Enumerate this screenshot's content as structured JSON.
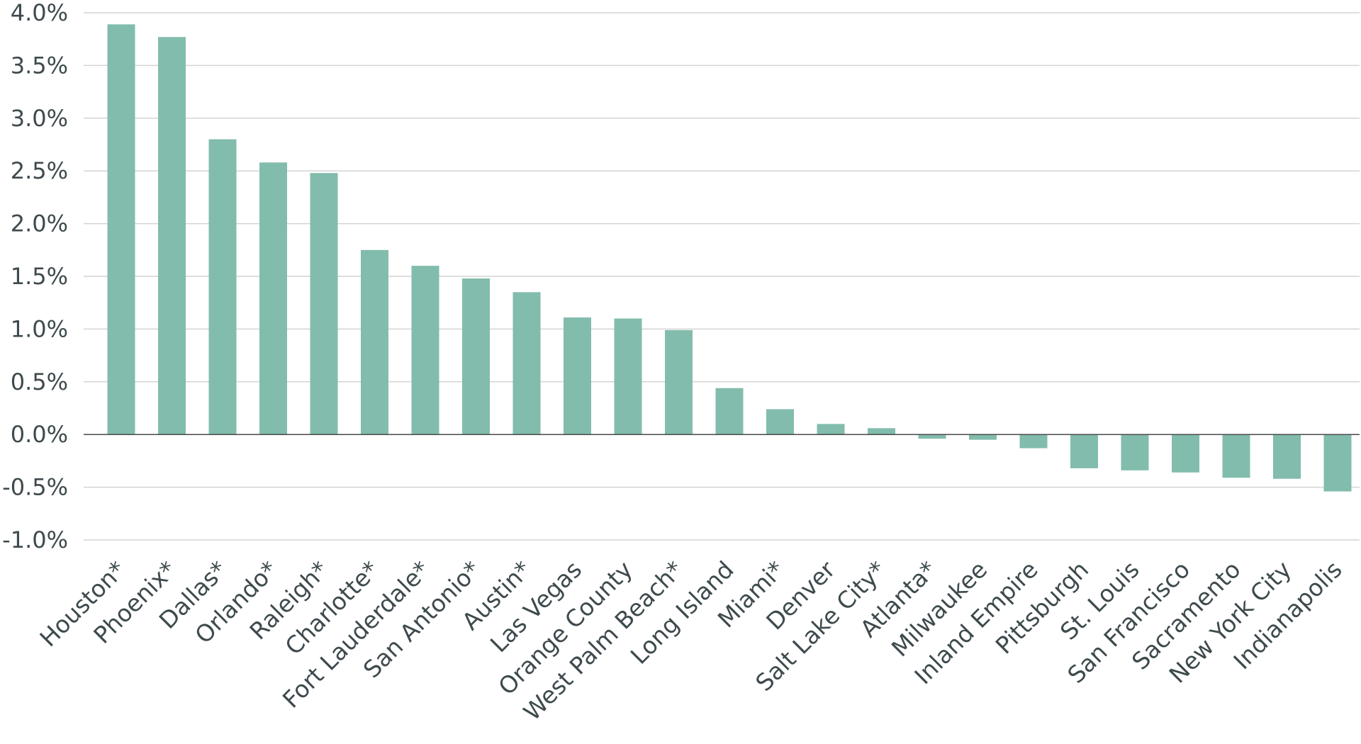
{
  "chart_data": {
    "type": "bar",
    "title": "",
    "xlabel": "",
    "ylabel": "",
    "ylim": [
      -1.0,
      4.0
    ],
    "y_ticks": [
      4.0,
      3.5,
      3.0,
      2.5,
      2.0,
      1.5,
      1.0,
      0.5,
      0.0,
      -0.5,
      -1.0
    ],
    "y_tick_labels": [
      "4.0%",
      "3.5%",
      "3.0%",
      "2.5%",
      "2.0%",
      "1.5%",
      "1.0%",
      "0.5%",
      "0.0%",
      "-0.5%",
      "-1.0%"
    ],
    "grid": true,
    "legend": "none",
    "bar_color": "#82bcad",
    "categories": [
      "Houston*",
      "Phoenix*",
      "Dallas*",
      "Orlando*",
      "Raleigh*",
      "Charlotte*",
      "Fort Lauderdale*",
      "San Antonio*",
      "Austin*",
      "Las Vegas",
      "Orange County",
      "West Palm Beach*",
      "Long Island",
      "Miami*",
      "Denver",
      "Salt Lake City*",
      "Atlanta*",
      "Milwaukee",
      "Inland Empire",
      "Pittsburgh",
      "St. Louis",
      "San Francisco",
      "Sacramento",
      "New York City",
      "Indianapolis"
    ],
    "values": [
      3.89,
      3.77,
      2.8,
      2.58,
      2.48,
      1.75,
      1.6,
      1.48,
      1.35,
      1.11,
      1.1,
      0.99,
      0.44,
      0.24,
      0.1,
      0.06,
      -0.04,
      -0.05,
      -0.13,
      -0.32,
      -0.34,
      -0.36,
      -0.41,
      -0.42,
      -0.54
    ]
  }
}
